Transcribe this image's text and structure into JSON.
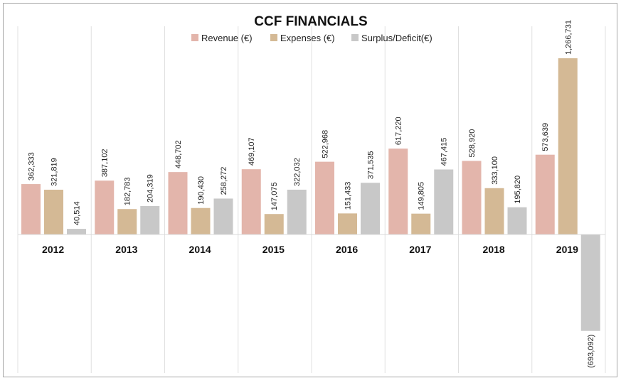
{
  "chart_data": {
    "type": "bar",
    "title": "CCF FINANCIALS",
    "categories": [
      "2012",
      "2013",
      "2014",
      "2015",
      "2016",
      "2017",
      "2018",
      "2019"
    ],
    "series": [
      {
        "name": "Revenue (€)",
        "color": "#e3b5ab",
        "values": [
          362333,
          387102,
          448702,
          469107,
          522968,
          617220,
          528920,
          573639
        ],
        "labels": [
          "362,333",
          "387,102",
          "448,702",
          "469,107",
          "522,968",
          "617,220",
          "528,920",
          "573,639"
        ]
      },
      {
        "name": "Expenses (€)",
        "color": "#d4b995",
        "values": [
          321819,
          182783,
          190430,
          147075,
          151433,
          149805,
          333100,
          1266731
        ],
        "labels": [
          "321,819",
          "182,783",
          "190,430",
          "147,075",
          "151,433",
          "149,805",
          "333,100",
          "1,266,731"
        ]
      },
      {
        "name": "Surplus/Deficit(€)",
        "color": "#c8c8c8",
        "values": [
          40514,
          204319,
          258272,
          322032,
          371535,
          467415,
          195820,
          -693092
        ],
        "labels": [
          "40,514",
          "204,319",
          "258,272",
          "322,032",
          "371,535",
          "467,415",
          "195,820",
          "(693,092)"
        ]
      }
    ],
    "ylim": [
      -1000000,
      1500000
    ],
    "gridlines": "vertical",
    "legend_position": "top-center",
    "category_label_position": "below-baseline"
  }
}
